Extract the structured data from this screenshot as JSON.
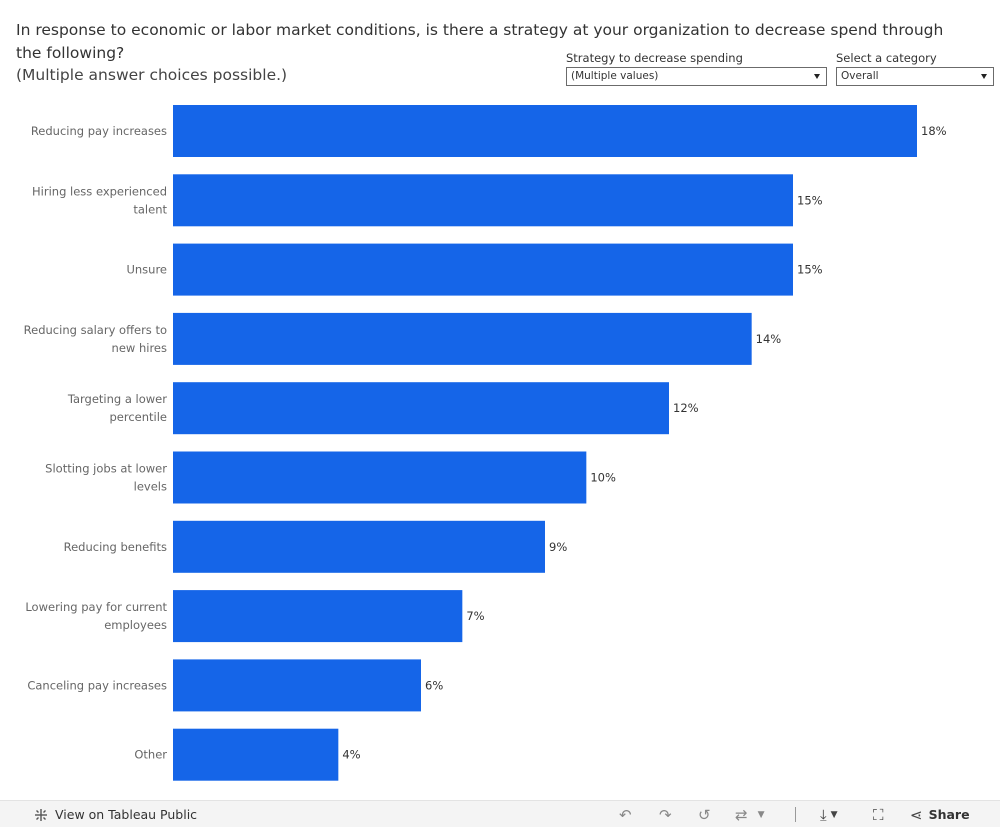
{
  "header": {
    "title": "In response to economic or labor market conditions, is there a strategy at your organization to decrease spend through the following?",
    "subtitle": "(Multiple answer choices possible.)"
  },
  "filters": {
    "strategy": {
      "label": "Strategy to decrease spending",
      "value": "(Multiple values)"
    },
    "category": {
      "label": "Select a category",
      "value": "Overall"
    }
  },
  "chart_data": {
    "type": "bar",
    "orientation": "horizontal",
    "categories": [
      [
        "Reducing pay increases"
      ],
      [
        "Hiring less experienced",
        "talent"
      ],
      [
        "Unsure"
      ],
      [
        "Reducing salary offers to",
        "new hires"
      ],
      [
        "Targeting a lower",
        "percentile"
      ],
      [
        "Slotting jobs at lower",
        "levels"
      ],
      [
        "Reducing benefits"
      ],
      [
        "Lowering pay for current",
        "employees"
      ],
      [
        "Canceling pay increases"
      ],
      [
        "Other"
      ]
    ],
    "values": [
      18,
      15,
      15,
      14,
      12,
      10,
      9,
      7,
      6,
      4
    ],
    "value_labels": [
      "18%",
      "15%",
      "15%",
      "14%",
      "12%",
      "10%",
      "9%",
      "7%",
      "6%",
      "4%"
    ],
    "xlim": [
      0,
      18
    ],
    "bar_color": "#1565e8",
    "grid": false,
    "legend": "none"
  },
  "toolbar": {
    "view_label": "View on Tableau Public",
    "share_label": "Share",
    "icons": [
      "tableau-icon",
      "undo-icon",
      "redo-icon",
      "revert-icon",
      "refresh-icon",
      "download-icon",
      "fullscreen-icon",
      "share-icon"
    ]
  }
}
